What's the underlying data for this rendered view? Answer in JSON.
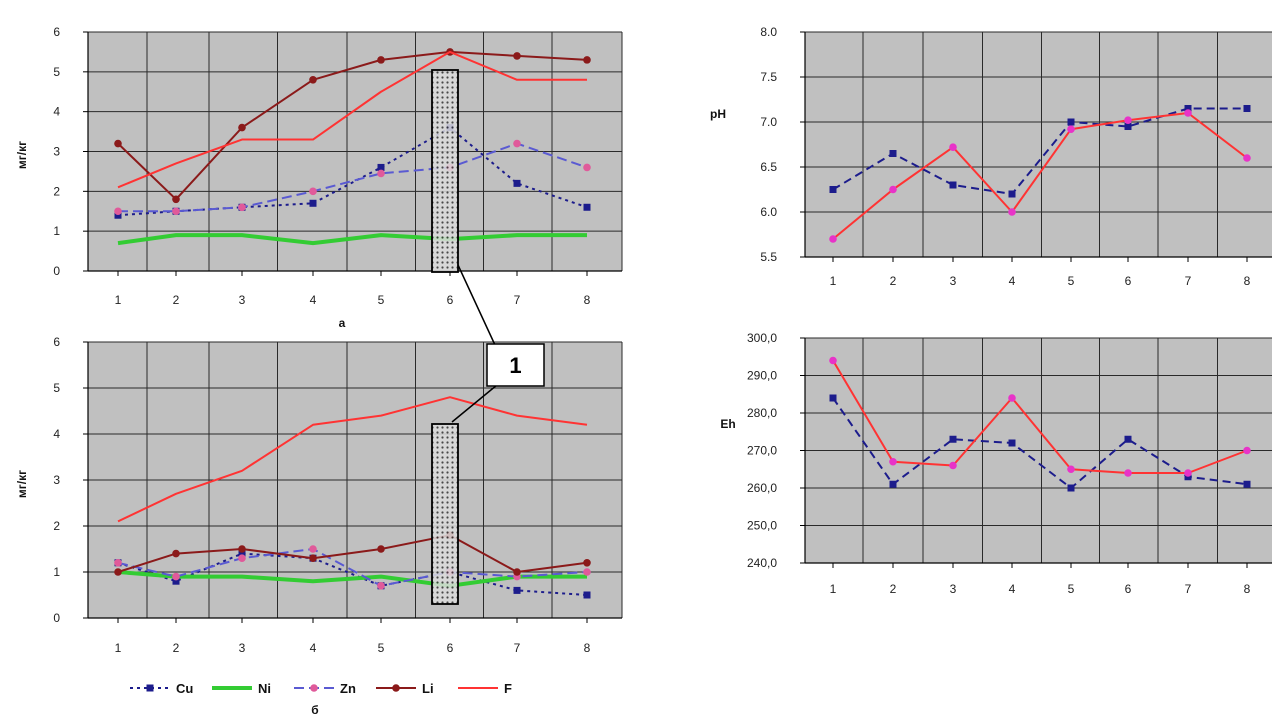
{
  "chart_data": [
    {
      "id": "a",
      "type": "line",
      "ylabel": "мг/кг",
      "caption": "а",
      "categories": [
        "1",
        "2",
        "3",
        "4",
        "5",
        "6",
        "7",
        "8"
      ],
      "ylim": [
        0,
        6
      ],
      "yticks": [
        "0",
        "1",
        "2",
        "3",
        "4",
        "5",
        "6"
      ],
      "grid": true,
      "series": [
        {
          "name": "Cu",
          "values": [
            1.4,
            1.5,
            1.6,
            1.7,
            2.6,
            3.6,
            2.2,
            1.6
          ]
        },
        {
          "name": "Ni",
          "values": [
            0.7,
            0.9,
            0.9,
            0.7,
            0.9,
            0.8,
            0.9,
            0.9
          ]
        },
        {
          "name": "Zn",
          "values": [
            1.5,
            1.5,
            1.6,
            2.0,
            2.45,
            2.6,
            3.2,
            2.6
          ]
        },
        {
          "name": "Li",
          "values": [
            3.2,
            1.8,
            3.6,
            4.8,
            5.3,
            5.5,
            5.4,
            5.3
          ]
        },
        {
          "name": "F",
          "values": [
            2.1,
            2.7,
            3.3,
            3.3,
            4.5,
            5.5,
            4.8,
            4.8
          ]
        }
      ]
    },
    {
      "id": "b",
      "type": "line",
      "ylabel": "мг/кг",
      "caption": "б",
      "categories": [
        "1",
        "2",
        "3",
        "4",
        "5",
        "6",
        "7",
        "8"
      ],
      "ylim": [
        0,
        6
      ],
      "yticks": [
        "0",
        "1",
        "2",
        "3",
        "4",
        "5",
        "6"
      ],
      "grid": true,
      "series": [
        {
          "name": "Cu",
          "values": [
            1.2,
            0.8,
            1.4,
            1.3,
            0.7,
            1.0,
            0.6,
            0.5
          ]
        },
        {
          "name": "Ni",
          "values": [
            1.0,
            0.9,
            0.9,
            0.8,
            0.9,
            0.7,
            0.9,
            0.9
          ]
        },
        {
          "name": "Zn",
          "values": [
            1.2,
            0.9,
            1.3,
            1.5,
            0.7,
            1.0,
            0.9,
            1.0
          ]
        },
        {
          "name": "Li",
          "values": [
            1.0,
            1.4,
            1.5,
            1.3,
            1.5,
            1.8,
            1.0,
            1.2
          ]
        },
        {
          "name": "F",
          "values": [
            2.1,
            2.7,
            3.2,
            4.2,
            4.4,
            4.8,
            4.4,
            4.2
          ]
        }
      ]
    },
    {
      "id": "ph",
      "type": "line",
      "ylabel": "pH",
      "categories": [
        "1",
        "2",
        "3",
        "4",
        "5",
        "6",
        "7",
        "8"
      ],
      "ylim": [
        5.5,
        8.0
      ],
      "yticks": [
        "5.5",
        "6.0",
        "6.5",
        "7.0",
        "7.5",
        "8.0"
      ],
      "grid": true,
      "series": [
        {
          "values": [
            6.25,
            6.65,
            6.3,
            6.2,
            7.0,
            6.95,
            7.15,
            7.15
          ]
        },
        {
          "values": [
            5.7,
            6.25,
            6.72,
            6.0,
            6.92,
            7.02,
            7.1,
            6.6
          ]
        }
      ]
    },
    {
      "id": "eh",
      "type": "line",
      "ylabel": "Eh",
      "categories": [
        "1",
        "2",
        "3",
        "4",
        "5",
        "6",
        "7",
        "8"
      ],
      "ylim": [
        240,
        300
      ],
      "yticks": [
        "240,0",
        "250,0",
        "260,0",
        "270,0",
        "280,0",
        "290,0",
        "300,0"
      ],
      "grid": true,
      "series": [
        {
          "values": [
            284,
            261,
            273,
            272,
            260,
            273,
            263,
            261
          ]
        },
        {
          "values": [
            294,
            267,
            266,
            284,
            265,
            264,
            264,
            270
          ]
        }
      ]
    }
  ],
  "legend": {
    "items": [
      {
        "label": "Cu",
        "series": "Cu"
      },
      {
        "label": "Ni",
        "series": "Ni"
      },
      {
        "label": "Zn",
        "series": "Zn"
      },
      {
        "label": "Li",
        "series": "Li"
      },
      {
        "label": "F",
        "series": "F"
      }
    ]
  },
  "callout": {
    "label": "1"
  },
  "styles": {
    "plot_bg": "#c0c0c0",
    "grid": "#2a2a2a",
    "Cu": {
      "color": "#1c1c8c",
      "dash": "3,4",
      "marker": "square"
    },
    "Ni": {
      "color": "#33cc33",
      "dash": "",
      "marker": "none"
    },
    "Zn": {
      "color": "#5a5ad2",
      "dash": "10,5",
      "marker": "circle",
      "markerColor": "#e05a9a"
    },
    "Li": {
      "color": "#8b1a1a",
      "dash": "",
      "marker": "circle"
    },
    "F": {
      "color": "#ff3333",
      "dash": "",
      "marker": "none"
    },
    "ph0": {
      "color": "#1c1c8c",
      "dash": "8,5",
      "marker": "square"
    },
    "ph1": {
      "color": "#ff3333",
      "dash": "",
      "marker": "circle",
      "markerColor": "#e833c8"
    },
    "eh0": {
      "color": "#1c1c8c",
      "dash": "8,5",
      "marker": "square"
    },
    "eh1": {
      "color": "#ff3333",
      "dash": "",
      "marker": "circle",
      "markerColor": "#e833c8"
    }
  }
}
